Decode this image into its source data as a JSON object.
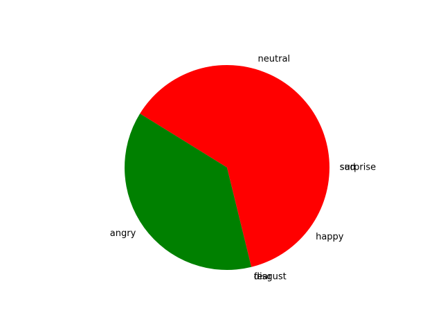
{
  "chart_data": {
    "type": "pie",
    "title": "",
    "categories": [
      "sad",
      "surprise",
      "neutral",
      "angry",
      "fear",
      "disgust",
      "happy"
    ],
    "values": [
      0,
      0,
      0.35,
      0.32,
      0,
      0,
      0.18
    ],
    "colors": [
      "#ff0000",
      "#008000",
      "#ff0000",
      "#008000",
      "#ff0000",
      "#008000",
      "#ff0000"
    ],
    "start_angle_deg": 0,
    "direction": "counterclockwise",
    "legend": "none"
  }
}
